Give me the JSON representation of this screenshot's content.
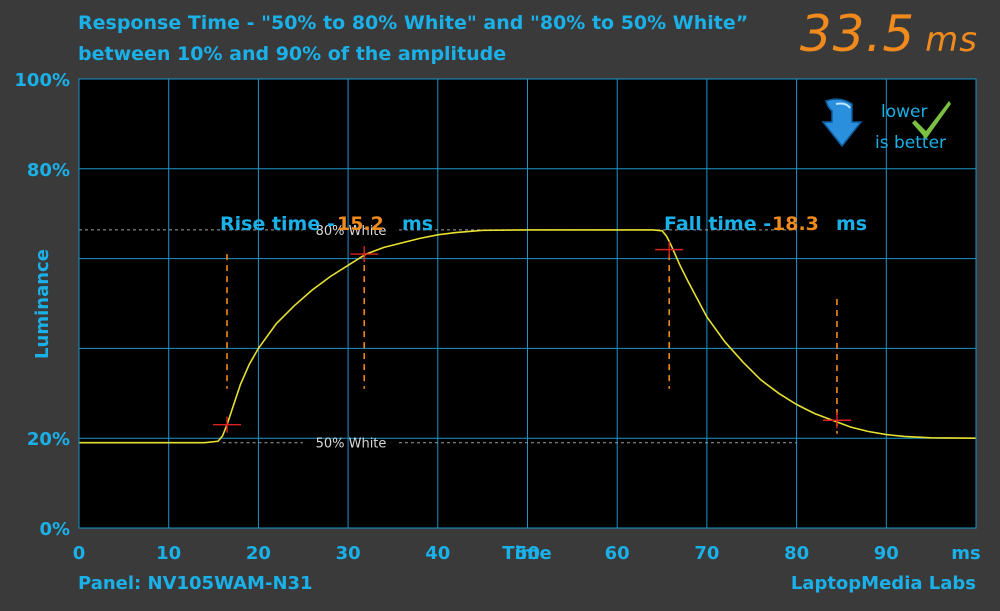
{
  "header": {
    "title_line1": "Response Time - \"50% to 80% White\" and \"80% to 50% White”",
    "title_line2": "between 10% and 90% of the amplitude",
    "total_value": "33.5",
    "total_unit": "ms"
  },
  "badge": {
    "line1": "lower",
    "line2": "is better",
    "arrow_icon": "down-arrow-icon",
    "check_icon": "checkmark-icon"
  },
  "footer": {
    "panel": "Panel: NV105WAM-N31",
    "brand": "LaptopMedia Labs"
  },
  "colors": {
    "background": "#3a3a3a",
    "plot_background": "#000000",
    "grid": "#1a95c8",
    "text_blue": "#1ab0e8",
    "accent_orange": "#f08a1c",
    "curve": "#e8e030",
    "marker_red": "#e02020",
    "reference_line": "#a0a0a0"
  },
  "chart_data": {
    "type": "line",
    "title": "Response Time - \"50% to 80% White\" and \"80% to 50% White” between 10% and 90% of the amplitude",
    "xlabel": "Time",
    "ylabel": "Luminance",
    "x_unit": "ms",
    "xlim": [
      0,
      100
    ],
    "ylim": [
      0,
      100
    ],
    "x_ticks": [
      0,
      10,
      20,
      30,
      40,
      50,
      60,
      70,
      80,
      90
    ],
    "x_tick_labels": [
      "0",
      "10",
      "20",
      "30",
      "40",
      "50",
      "60",
      "70",
      "80",
      "90"
    ],
    "y_tick_labels": [
      {
        "value": 100,
        "label": "100%"
      },
      {
        "value": 80,
        "label": "80%"
      },
      {
        "value": 20,
        "label": "20%"
      },
      {
        "value": 0,
        "label": "0%"
      }
    ],
    "y_grid": [
      0,
      20,
      40,
      60,
      80,
      100
    ],
    "grid": true,
    "series": [
      {
        "x": [
          0,
          5,
          10,
          14,
          15.5,
          16,
          16.5,
          17,
          18,
          19,
          20,
          22,
          24,
          26,
          28,
          30,
          32,
          34,
          36,
          38,
          40,
          42,
          45,
          50,
          55,
          60,
          64,
          65,
          65.5,
          66,
          67,
          68,
          70,
          72,
          74,
          76,
          78,
          80,
          82,
          84,
          86,
          88,
          90,
          92,
          95,
          100
        ],
        "y": [
          19.0,
          19.0,
          19.0,
          19.0,
          19.3,
          20.5,
          23.0,
          26.0,
          32.0,
          36.5,
          40.0,
          45.5,
          49.5,
          53.0,
          56.0,
          58.5,
          61.0,
          62.5,
          63.5,
          64.5,
          65.3,
          65.8,
          66.3,
          66.4,
          66.4,
          66.4,
          66.4,
          66.2,
          65.0,
          63.0,
          58.5,
          54.5,
          47.0,
          41.5,
          37.0,
          33.0,
          30.0,
          27.5,
          25.5,
          24.0,
          22.5,
          21.5,
          20.8,
          20.4,
          20.1,
          20.0
        ]
      }
    ],
    "reference_lines": [
      {
        "label": "80% White",
        "y": 66.4,
        "x_start": 0,
        "x_end": 80
      },
      {
        "label": "50% White",
        "y": 19.0,
        "x_start": 16,
        "x_end": 80
      }
    ],
    "rise": {
      "label": "Rise time -",
      "value": "15.2",
      "unit": "ms",
      "x_start": 16.5,
      "x_end": 31.8
    },
    "fall": {
      "label": "Fall time -",
      "value": "18.3",
      "unit": "ms",
      "x_start": 65.8,
      "x_end": 84.5
    },
    "markers": [
      {
        "x": 16.5,
        "y": 23.0
      },
      {
        "x": 31.8,
        "y": 61.0
      },
      {
        "x": 65.8,
        "y": 62.0
      },
      {
        "x": 84.5,
        "y": 24.0
      }
    ]
  }
}
